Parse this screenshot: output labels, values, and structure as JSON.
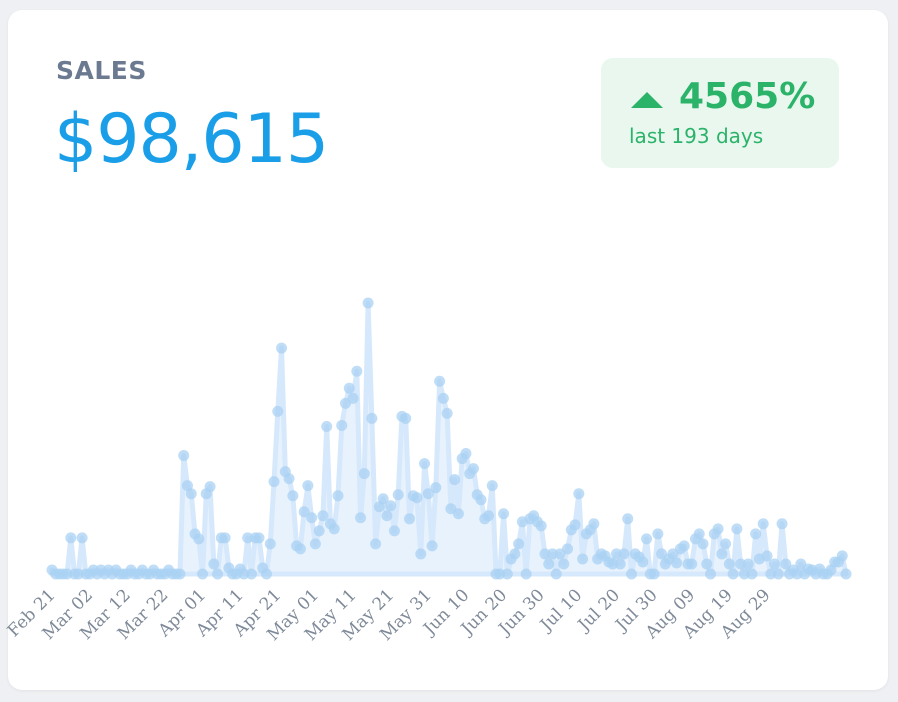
{
  "header": {
    "title": "SALES",
    "value": "$98,615"
  },
  "badge": {
    "percent": "4565%",
    "subtitle": "last 193 days",
    "icon": "triangle-up-icon"
  },
  "colors": {
    "value": "#1b9ee8",
    "positive": "#2bb36a",
    "positive_bg": "#e9f7ee",
    "series_fill": "#d6e8fb",
    "series_point": "#a9d1f3"
  },
  "chart_data": {
    "type": "area",
    "x_ticks": [
      "Feb 21",
      "Mar 02",
      "Mar 12",
      "Mar 22",
      "Apr 01",
      "Apr 11",
      "Apr 21",
      "May 01",
      "May 11",
      "May 21",
      "May 31",
      "Jun 10",
      "Jun 20",
      "Jun 30",
      "Jul 10",
      "Jul 20",
      "Jul 30",
      "Aug 09",
      "Aug 19",
      "Aug 29"
    ],
    "x_start": "Feb 21",
    "ylim": [
      0,
      270
    ],
    "grid": false,
    "legend": "none",
    "values": [
      4,
      0,
      0,
      0,
      0,
      36,
      0,
      0,
      36,
      0,
      0,
      4,
      0,
      4,
      0,
      4,
      0,
      4,
      0,
      0,
      0,
      4,
      0,
      0,
      4,
      0,
      0,
      4,
      0,
      0,
      0,
      4,
      0,
      0,
      0,
      118,
      88,
      80,
      40,
      35,
      0,
      80,
      87,
      10,
      0,
      36,
      36,
      6,
      0,
      0,
      5,
      0,
      36,
      0,
      36,
      36,
      6,
      0,
      30,
      92,
      162,
      225,
      102,
      95,
      78,
      28,
      25,
      62,
      88,
      56,
      30,
      43,
      58,
      147,
      50,
      45,
      78,
      148,
      170,
      185,
      175,
      202,
      56,
      100,
      270,
      155,
      30,
      67,
      75,
      58,
      68,
      43,
      79,
      157,
      155,
      55,
      78,
      76,
      20,
      110,
      80,
      28,
      86,
      192,
      175,
      160,
      65,
      94,
      60,
      115,
      120,
      100,
      105,
      79,
      74,
      55,
      58,
      88,
      0,
      0,
      60,
      0,
      15,
      20,
      30,
      52,
      0,
      55,
      58,
      52,
      48,
      20,
      10,
      20,
      0,
      20,
      10,
      25,
      44,
      49,
      80,
      15,
      40,
      44,
      50,
      15,
      20,
      18,
      12,
      10,
      20,
      10,
      20,
      55,
      0,
      20,
      17,
      12,
      35,
      0,
      0,
      40,
      20,
      10,
      15,
      20,
      11,
      25,
      28,
      10,
      10,
      35,
      40,
      30,
      10,
      0,
      40,
      45,
      20,
      30,
      10,
      0,
      45,
      10,
      0,
      10,
      0,
      40,
      15,
      50,
      18,
      0,
      10,
      0,
      50,
      10,
      0,
      4,
      0,
      10,
      0,
      5,
      4,
      0,
      5,
      0,
      0,
      4,
      12,
      12,
      18,
      0
    ]
  }
}
